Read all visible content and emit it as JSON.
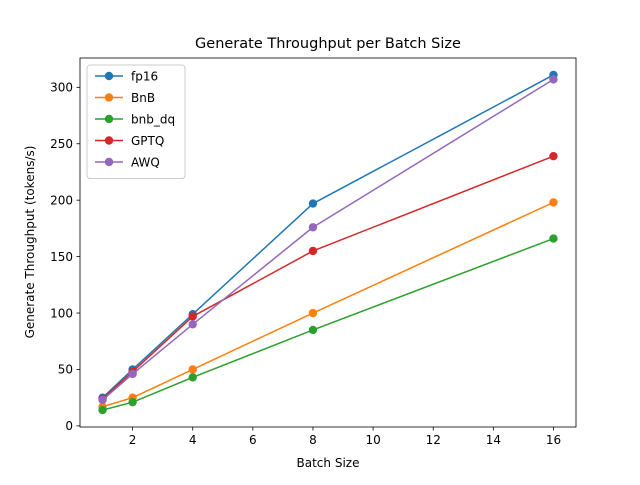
{
  "chart_data": {
    "type": "line",
    "title": "Generate Throughput per Batch Size",
    "xlabel": "Batch Size",
    "ylabel": "Generate Throughput (tokens/s)",
    "x": [
      1,
      2,
      4,
      8,
      16
    ],
    "xlim": [
      0.25,
      16.75
    ],
    "ylim": [
      -1,
      326
    ],
    "xticks": [
      2,
      4,
      6,
      8,
      10,
      12,
      14,
      16
    ],
    "yticks": [
      0,
      50,
      100,
      150,
      200,
      250,
      300
    ],
    "grid": false,
    "legend_position": "top-left",
    "series": [
      {
        "name": "fp16",
        "color": "#1f77b4",
        "values": [
          25,
          50,
          99,
          197,
          311
        ]
      },
      {
        "name": "BnB",
        "color": "#ff7f0e",
        "values": [
          17,
          25,
          50,
          100,
          198
        ]
      },
      {
        "name": "bnb_dq",
        "color": "#2ca02c",
        "values": [
          14,
          21,
          43,
          85,
          166
        ]
      },
      {
        "name": "GPTQ",
        "color": "#d62728",
        "values": [
          24,
          48,
          97,
          155,
          239
        ]
      },
      {
        "name": "AWQ",
        "color": "#9467bd",
        "values": [
          23,
          46,
          90,
          176,
          307
        ]
      }
    ]
  }
}
